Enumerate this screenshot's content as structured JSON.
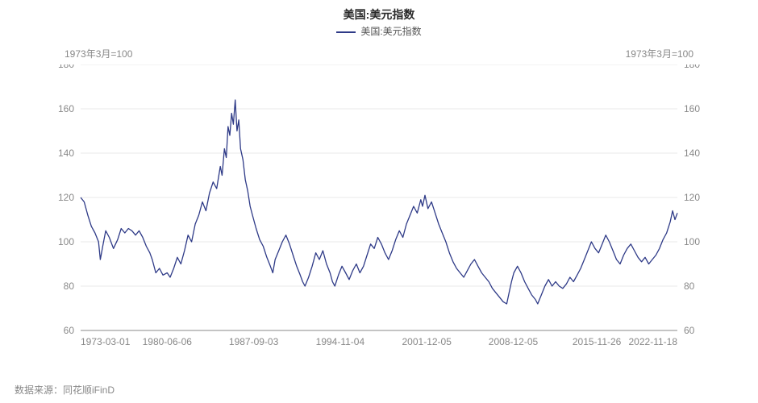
{
  "chart": {
    "type": "line",
    "title": "美国:美元指数",
    "legend_label": "美国:美元指数",
    "note_left": "1973年3月=100",
    "note_right": "1973年3月=100",
    "footer": "数据来源：同花顺iFinD",
    "title_fontsize": 14,
    "legend_fontsize": 12,
    "note_fontsize": 12,
    "tick_fontsize": 12,
    "footer_fontsize": 12,
    "colors": {
      "line": "#2e3a87",
      "axis": "#888888",
      "grid": "#e8e8e8",
      "title": "#2a2a2a",
      "legend_text": "#555555",
      "note": "#888888",
      "tick": "#888888",
      "background": "#ffffff"
    },
    "line_width": 1.3,
    "ylim": [
      60,
      180
    ],
    "yticks": [
      60,
      80,
      100,
      120,
      140,
      160,
      180
    ],
    "xticks": [
      {
        "t": 0.0,
        "label": "1973-03-01"
      },
      {
        "t": 0.145,
        "label": "1980-06-06"
      },
      {
        "t": 0.29,
        "label": "1987-09-03"
      },
      {
        "t": 0.435,
        "label": "1994-11-04"
      },
      {
        "t": 0.58,
        "label": "2001-12-05"
      },
      {
        "t": 0.725,
        "label": "2008-12-05"
      },
      {
        "t": 0.865,
        "label": "2015-11-26"
      },
      {
        "t": 1.0,
        "label": "2022-11-18"
      }
    ],
    "series": [
      {
        "t": 0.0,
        "v": 120
      },
      {
        "t": 0.006,
        "v": 118
      },
      {
        "t": 0.012,
        "v": 112
      },
      {
        "t": 0.018,
        "v": 107
      },
      {
        "t": 0.024,
        "v": 104
      },
      {
        "t": 0.03,
        "v": 100
      },
      {
        "t": 0.033,
        "v": 92
      },
      {
        "t": 0.037,
        "v": 98
      },
      {
        "t": 0.042,
        "v": 105
      },
      {
        "t": 0.048,
        "v": 102
      },
      {
        "t": 0.055,
        "v": 97
      },
      {
        "t": 0.062,
        "v": 101
      },
      {
        "t": 0.068,
        "v": 106
      },
      {
        "t": 0.074,
        "v": 104
      },
      {
        "t": 0.08,
        "v": 106
      },
      {
        "t": 0.086,
        "v": 105
      },
      {
        "t": 0.092,
        "v": 103
      },
      {
        "t": 0.098,
        "v": 105
      },
      {
        "t": 0.104,
        "v": 102
      },
      {
        "t": 0.11,
        "v": 98
      },
      {
        "t": 0.116,
        "v": 95
      },
      {
        "t": 0.12,
        "v": 92
      },
      {
        "t": 0.126,
        "v": 86
      },
      {
        "t": 0.132,
        "v": 88
      },
      {
        "t": 0.138,
        "v": 85
      },
      {
        "t": 0.145,
        "v": 86
      },
      {
        "t": 0.15,
        "v": 84
      },
      {
        "t": 0.156,
        "v": 88
      },
      {
        "t": 0.162,
        "v": 93
      },
      {
        "t": 0.168,
        "v": 90
      },
      {
        "t": 0.174,
        "v": 96
      },
      {
        "t": 0.18,
        "v": 103
      },
      {
        "t": 0.186,
        "v": 100
      },
      {
        "t": 0.192,
        "v": 108
      },
      {
        "t": 0.198,
        "v": 112
      },
      {
        "t": 0.204,
        "v": 118
      },
      {
        "t": 0.21,
        "v": 114
      },
      {
        "t": 0.216,
        "v": 122
      },
      {
        "t": 0.222,
        "v": 127
      },
      {
        "t": 0.228,
        "v": 124
      },
      {
        "t": 0.234,
        "v": 134
      },
      {
        "t": 0.237,
        "v": 130
      },
      {
        "t": 0.241,
        "v": 142
      },
      {
        "t": 0.244,
        "v": 138
      },
      {
        "t": 0.247,
        "v": 152
      },
      {
        "t": 0.25,
        "v": 148
      },
      {
        "t": 0.253,
        "v": 158
      },
      {
        "t": 0.256,
        "v": 153
      },
      {
        "t": 0.259,
        "v": 164
      },
      {
        "t": 0.262,
        "v": 150
      },
      {
        "t": 0.265,
        "v": 155
      },
      {
        "t": 0.268,
        "v": 142
      },
      {
        "t": 0.272,
        "v": 137
      },
      {
        "t": 0.276,
        "v": 128
      },
      {
        "t": 0.28,
        "v": 123
      },
      {
        "t": 0.284,
        "v": 116
      },
      {
        "t": 0.288,
        "v": 112
      },
      {
        "t": 0.294,
        "v": 106
      },
      {
        "t": 0.3,
        "v": 101
      },
      {
        "t": 0.306,
        "v": 98
      },
      {
        "t": 0.312,
        "v": 93
      },
      {
        "t": 0.318,
        "v": 89
      },
      {
        "t": 0.322,
        "v": 86
      },
      {
        "t": 0.326,
        "v": 92
      },
      {
        "t": 0.332,
        "v": 96
      },
      {
        "t": 0.338,
        "v": 100
      },
      {
        "t": 0.344,
        "v": 103
      },
      {
        "t": 0.35,
        "v": 99
      },
      {
        "t": 0.356,
        "v": 94
      },
      {
        "t": 0.362,
        "v": 89
      },
      {
        "t": 0.368,
        "v": 85
      },
      {
        "t": 0.372,
        "v": 82
      },
      {
        "t": 0.376,
        "v": 80
      },
      {
        "t": 0.382,
        "v": 84
      },
      {
        "t": 0.388,
        "v": 89
      },
      {
        "t": 0.394,
        "v": 95
      },
      {
        "t": 0.4,
        "v": 92
      },
      {
        "t": 0.406,
        "v": 96
      },
      {
        "t": 0.412,
        "v": 90
      },
      {
        "t": 0.418,
        "v": 86
      },
      {
        "t": 0.422,
        "v": 82
      },
      {
        "t": 0.426,
        "v": 80
      },
      {
        "t": 0.432,
        "v": 85
      },
      {
        "t": 0.438,
        "v": 89
      },
      {
        "t": 0.444,
        "v": 86
      },
      {
        "t": 0.45,
        "v": 83
      },
      {
        "t": 0.456,
        "v": 87
      },
      {
        "t": 0.462,
        "v": 90
      },
      {
        "t": 0.468,
        "v": 86
      },
      {
        "t": 0.474,
        "v": 89
      },
      {
        "t": 0.48,
        "v": 94
      },
      {
        "t": 0.486,
        "v": 99
      },
      {
        "t": 0.492,
        "v": 97
      },
      {
        "t": 0.498,
        "v": 102
      },
      {
        "t": 0.504,
        "v": 99
      },
      {
        "t": 0.51,
        "v": 95
      },
      {
        "t": 0.516,
        "v": 92
      },
      {
        "t": 0.522,
        "v": 96
      },
      {
        "t": 0.528,
        "v": 101
      },
      {
        "t": 0.534,
        "v": 105
      },
      {
        "t": 0.54,
        "v": 102
      },
      {
        "t": 0.546,
        "v": 108
      },
      {
        "t": 0.552,
        "v": 112
      },
      {
        "t": 0.558,
        "v": 116
      },
      {
        "t": 0.564,
        "v": 113
      },
      {
        "t": 0.57,
        "v": 119
      },
      {
        "t": 0.573,
        "v": 116
      },
      {
        "t": 0.577,
        "v": 121
      },
      {
        "t": 0.582,
        "v": 115
      },
      {
        "t": 0.588,
        "v": 118
      },
      {
        "t": 0.594,
        "v": 113
      },
      {
        "t": 0.6,
        "v": 108
      },
      {
        "t": 0.606,
        "v": 104
      },
      {
        "t": 0.612,
        "v": 100
      },
      {
        "t": 0.618,
        "v": 95
      },
      {
        "t": 0.624,
        "v": 91
      },
      {
        "t": 0.63,
        "v": 88
      },
      {
        "t": 0.636,
        "v": 86
      },
      {
        "t": 0.642,
        "v": 84
      },
      {
        "t": 0.648,
        "v": 87
      },
      {
        "t": 0.654,
        "v": 90
      },
      {
        "t": 0.66,
        "v": 92
      },
      {
        "t": 0.666,
        "v": 89
      },
      {
        "t": 0.672,
        "v": 86
      },
      {
        "t": 0.678,
        "v": 84
      },
      {
        "t": 0.684,
        "v": 82
      },
      {
        "t": 0.69,
        "v": 79
      },
      {
        "t": 0.696,
        "v": 77
      },
      {
        "t": 0.702,
        "v": 75
      },
      {
        "t": 0.708,
        "v": 73
      },
      {
        "t": 0.714,
        "v": 72
      },
      {
        "t": 0.718,
        "v": 77
      },
      {
        "t": 0.722,
        "v": 82
      },
      {
        "t": 0.726,
        "v": 86
      },
      {
        "t": 0.732,
        "v": 89
      },
      {
        "t": 0.738,
        "v": 86
      },
      {
        "t": 0.744,
        "v": 82
      },
      {
        "t": 0.75,
        "v": 79
      },
      {
        "t": 0.756,
        "v": 76
      },
      {
        "t": 0.762,
        "v": 74
      },
      {
        "t": 0.766,
        "v": 72
      },
      {
        "t": 0.772,
        "v": 76
      },
      {
        "t": 0.778,
        "v": 80
      },
      {
        "t": 0.784,
        "v": 83
      },
      {
        "t": 0.79,
        "v": 80
      },
      {
        "t": 0.796,
        "v": 82
      },
      {
        "t": 0.802,
        "v": 80
      },
      {
        "t": 0.808,
        "v": 79
      },
      {
        "t": 0.814,
        "v": 81
      },
      {
        "t": 0.82,
        "v": 84
      },
      {
        "t": 0.826,
        "v": 82
      },
      {
        "t": 0.832,
        "v": 85
      },
      {
        "t": 0.838,
        "v": 88
      },
      {
        "t": 0.844,
        "v": 92
      },
      {
        "t": 0.85,
        "v": 96
      },
      {
        "t": 0.856,
        "v": 100
      },
      {
        "t": 0.862,
        "v": 97
      },
      {
        "t": 0.868,
        "v": 95
      },
      {
        "t": 0.874,
        "v": 99
      },
      {
        "t": 0.88,
        "v": 103
      },
      {
        "t": 0.886,
        "v": 100
      },
      {
        "t": 0.892,
        "v": 96
      },
      {
        "t": 0.898,
        "v": 92
      },
      {
        "t": 0.904,
        "v": 90
      },
      {
        "t": 0.91,
        "v": 94
      },
      {
        "t": 0.916,
        "v": 97
      },
      {
        "t": 0.922,
        "v": 99
      },
      {
        "t": 0.928,
        "v": 96
      },
      {
        "t": 0.934,
        "v": 93
      },
      {
        "t": 0.94,
        "v": 91
      },
      {
        "t": 0.946,
        "v": 93
      },
      {
        "t": 0.952,
        "v": 90
      },
      {
        "t": 0.958,
        "v": 92
      },
      {
        "t": 0.964,
        "v": 94
      },
      {
        "t": 0.97,
        "v": 97
      },
      {
        "t": 0.976,
        "v": 101
      },
      {
        "t": 0.982,
        "v": 104
      },
      {
        "t": 0.988,
        "v": 109
      },
      {
        "t": 0.992,
        "v": 114
      },
      {
        "t": 0.996,
        "v": 110
      },
      {
        "t": 1.0,
        "v": 113
      }
    ]
  }
}
